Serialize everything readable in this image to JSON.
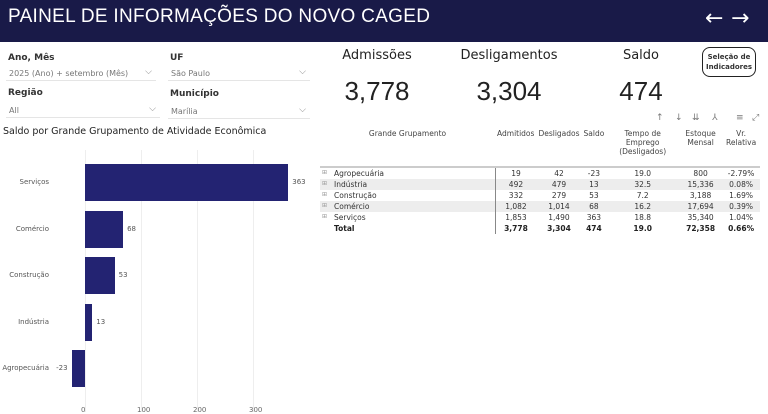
{
  "header": {
    "title": "PAINEL DE INFORMAÇÕES DO NOVO CAGED",
    "back": "←",
    "forward": "→"
  },
  "filters": [
    {
      "label": "Ano, Mês",
      "value": "2025 (Ano) + setembro (Mês)"
    },
    {
      "label": "UF",
      "value": "São Paulo"
    },
    {
      "label": "Região",
      "value": "All"
    },
    {
      "label": "Município",
      "value": "Marília"
    }
  ],
  "kpis": [
    {
      "label": "Admissões",
      "value": "3,778"
    },
    {
      "label": "Desligamentos",
      "value": "3,304"
    },
    {
      "label": "Saldo",
      "value": "474"
    }
  ],
  "selection_button": {
    "line1": "Seleção de",
    "line2": "Indicadores"
  },
  "chart_data": {
    "type": "bar",
    "orientation": "horizontal",
    "title": "Saldo por Grande Grupamento de Atividade Econômica",
    "categories": [
      "Serviços",
      "Comércio",
      "Construção",
      "Indústria",
      "Agropecuária"
    ],
    "values": [
      363,
      68,
      53,
      13,
      -23
    ],
    "xticks": [
      "0",
      "100",
      "200",
      "300"
    ],
    "xlim": [
      -23,
      363
    ]
  },
  "table": {
    "headers": [
      "Grande Grupamento",
      "Admitidos",
      "Desligados",
      "Saldo",
      "Tempo de Emprego (Desligados)",
      "Estoque Mensal",
      "Vr. Relativa"
    ],
    "rows": [
      [
        "Agropecuária",
        "19",
        "42",
        "-23",
        "19.0",
        "800",
        "-2.79%"
      ],
      [
        "Indústria",
        "492",
        "479",
        "13",
        "32.5",
        "15,336",
        "0.08%"
      ],
      [
        "Construção",
        "332",
        "279",
        "53",
        "7.2",
        "3,188",
        "1.69%"
      ],
      [
        "Comércio",
        "1,082",
        "1,014",
        "68",
        "16.2",
        "17,694",
        "0.39%"
      ],
      [
        "Serviços",
        "1,853",
        "1,490",
        "363",
        "18.8",
        "35,340",
        "1.04%"
      ]
    ],
    "total": [
      "Total",
      "3,778",
      "3,304",
      "474",
      "19.0",
      "72,358",
      "0.66%"
    ],
    "tools": [
      "↑",
      "↓",
      "⇊",
      "⅄",
      "≡",
      "⤢"
    ]
  }
}
